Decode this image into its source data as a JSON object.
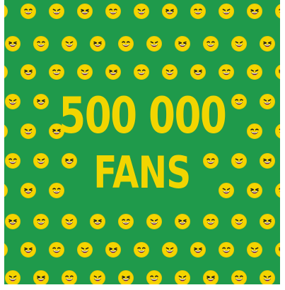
{
  "poster": {
    "headline": "500 000",
    "subheadline": "FANS",
    "background_color": "#1f9a4b",
    "text_color": "#f2d500",
    "pattern_icon": "laughing-face-emoji"
  }
}
